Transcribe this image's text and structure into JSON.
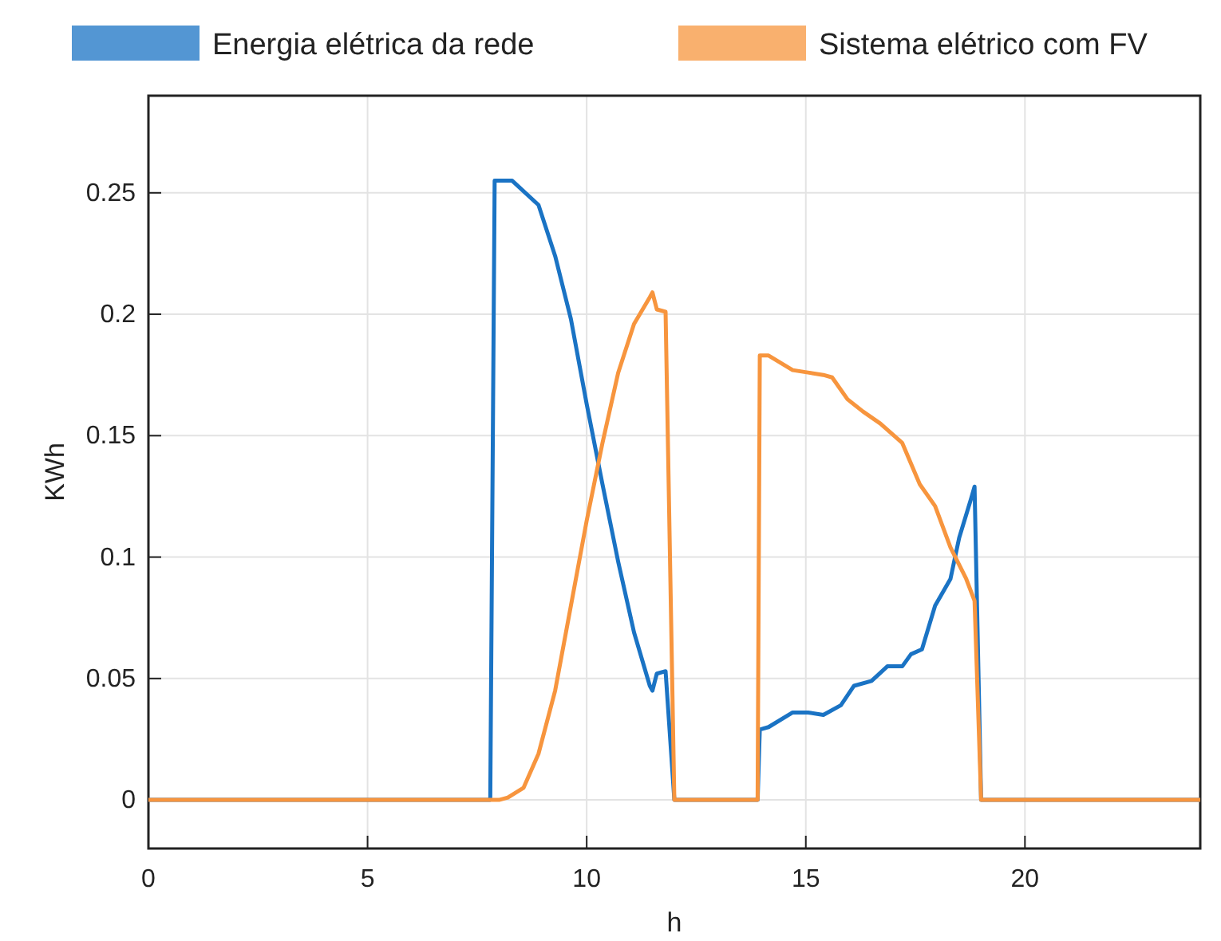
{
  "chart_data": {
    "type": "line",
    "xlabel": "h",
    "ylabel": "KWh",
    "xlim": [
      0,
      24
    ],
    "ylim": [
      -0.02,
      0.29
    ],
    "xticks": [
      0,
      5,
      10,
      15,
      20
    ],
    "yticks": [
      0,
      0.05,
      0.1,
      0.15,
      0.2,
      0.25
    ],
    "grid": true,
    "legend": "top",
    "marker": "none",
    "line_style": "solid",
    "series": [
      {
        "name": "Energia elétrica da rede",
        "color": "#1a73c4",
        "x": [
          0,
          7.8,
          7.9,
          8.3,
          8.9,
          9.28,
          9.64,
          10,
          10.36,
          10.72,
          11.08,
          11.44,
          11.5,
          11.6,
          11.8,
          12,
          13.9,
          13.95,
          14.15,
          14.7,
          15.05,
          15.4,
          15.8,
          16.1,
          16.5,
          16.86,
          17.2,
          17.4,
          17.65,
          17.95,
          18.3,
          18.5,
          18.77,
          18.85,
          19,
          24
        ],
        "values": [
          0,
          0,
          0.255,
          0.255,
          0.245,
          0.224,
          0.198,
          0.163,
          0.13,
          0.098,
          0.069,
          0.047,
          0.045,
          0.052,
          0.053,
          0,
          0,
          0.029,
          0.03,
          0.036,
          0.036,
          0.035,
          0.039,
          0.047,
          0.049,
          0.055,
          0.055,
          0.06,
          0.062,
          0.08,
          0.091,
          0.108,
          0.124,
          0.129,
          0,
          0
        ]
      },
      {
        "name": "Sistema elétrico com FV",
        "color": "#f7953e",
        "x": [
          0,
          8,
          8.2,
          8.56,
          8.9,
          9.28,
          9.64,
          10,
          10.36,
          10.72,
          11.08,
          11.44,
          11.5,
          11.6,
          11.8,
          12,
          13.9,
          13.95,
          14.15,
          14.7,
          15.05,
          15.4,
          15.6,
          15.95,
          16.3,
          16.7,
          17.2,
          17.6,
          17.95,
          18.3,
          18.66,
          18.85,
          19,
          24
        ],
        "values": [
          0,
          0,
          0.001,
          0.005,
          0.019,
          0.045,
          0.08,
          0.115,
          0.147,
          0.176,
          0.196,
          0.207,
          0.209,
          0.202,
          0.201,
          0,
          0,
          0.183,
          0.183,
          0.177,
          0.176,
          0.175,
          0.174,
          0.165,
          0.16,
          0.155,
          0.147,
          0.13,
          0.121,
          0.104,
          0.091,
          0.082,
          0,
          0
        ]
      }
    ]
  }
}
